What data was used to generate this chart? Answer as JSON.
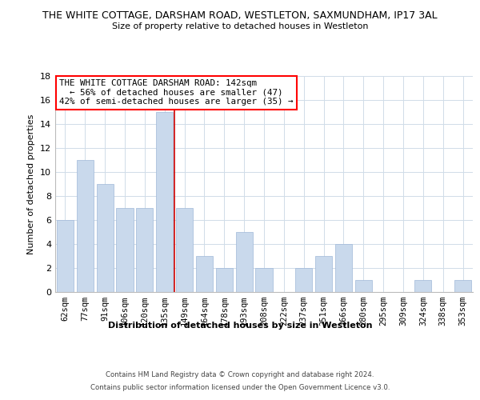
{
  "title": "THE WHITE COTTAGE, DARSHAM ROAD, WESTLETON, SAXMUNDHAM, IP17 3AL",
  "subtitle": "Size of property relative to detached houses in Westleton",
  "xlabel": "Distribution of detached houses by size in Westleton",
  "ylabel": "Number of detached properties",
  "bar_color": "#c9d9ec",
  "bar_edge_color": "#a0b8d8",
  "categories": [
    "62sqm",
    "77sqm",
    "91sqm",
    "106sqm",
    "120sqm",
    "135sqm",
    "149sqm",
    "164sqm",
    "178sqm",
    "193sqm",
    "208sqm",
    "222sqm",
    "237sqm",
    "251sqm",
    "266sqm",
    "280sqm",
    "295sqm",
    "309sqm",
    "324sqm",
    "338sqm",
    "353sqm"
  ],
  "values": [
    6,
    11,
    9,
    7,
    7,
    15,
    7,
    3,
    2,
    5,
    2,
    0,
    2,
    3,
    4,
    1,
    0,
    0,
    1,
    0,
    1
  ],
  "ylim": [
    0,
    18
  ],
  "yticks": [
    0,
    2,
    4,
    6,
    8,
    10,
    12,
    14,
    16,
    18
  ],
  "annotation_title": "THE WHITE COTTAGE DARSHAM ROAD: 142sqm",
  "annotation_line1": "← 56% of detached houses are smaller (47)",
  "annotation_line2": "42% of semi-detached houses are larger (35) →",
  "footnote1": "Contains HM Land Registry data © Crown copyright and database right 2024.",
  "footnote2": "Contains public sector information licensed under the Open Government Licence v3.0.",
  "background_color": "#ffffff",
  "grid_color": "#d0dce8",
  "red_line_color": "#cc0000"
}
